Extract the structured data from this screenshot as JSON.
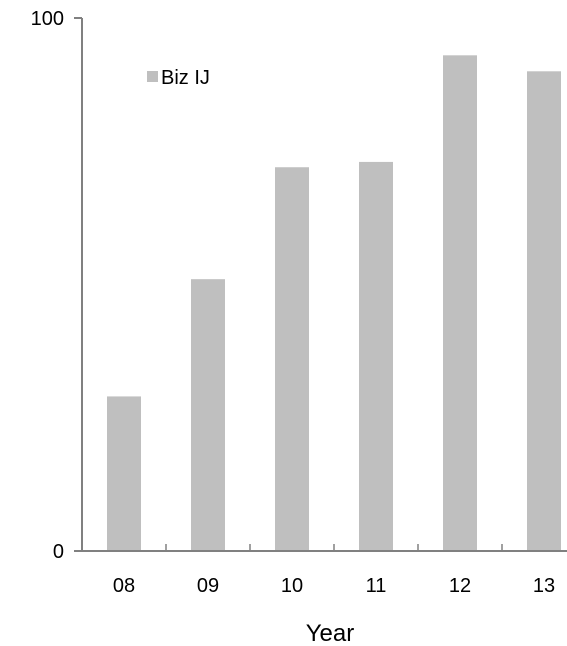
{
  "chart_data": {
    "type": "bar",
    "categories": [
      "08",
      "09",
      "10",
      "11",
      "12",
      "13"
    ],
    "series": [
      {
        "name": "Biz IJ",
        "values": [
          29,
          51,
          72,
          73,
          93,
          90
        ]
      }
    ],
    "xlabel": "Year",
    "ylabel": "",
    "ylim": [
      0,
      100
    ],
    "yticks": [
      "0",
      "100"
    ],
    "legend_position": "top-left",
    "grid": false,
    "colors": {
      "bar": "#bfbfbf",
      "axis": "#808080"
    }
  }
}
